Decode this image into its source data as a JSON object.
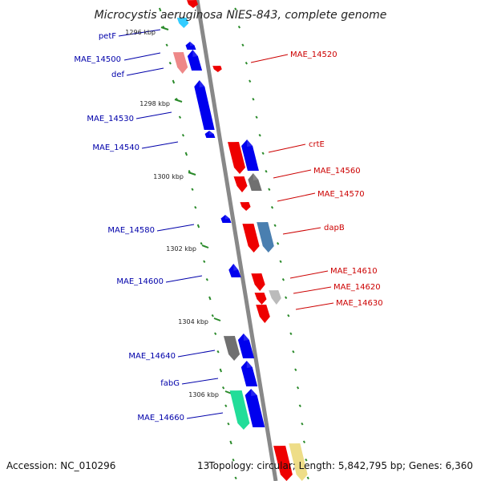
{
  "title": "Microcystis aeruginosa NIES-843, complete genome",
  "footer": {
    "accession": "Accession: NC_010296",
    "topology": "Topology: circular; Length: 5,842,795 bp; Genes: 6,360",
    "clipped": "13"
  },
  "colors": {
    "forward": "#0000ee",
    "reverse": "#ee0000",
    "forward_label": "#0000aa",
    "reverse_label": "#cc0000",
    "backbone": "#888888",
    "tick": "#2a8a2a",
    "grey_gene": "#707070",
    "steelblue_gene": "#4a7fb0",
    "green_gene": "#22dd99",
    "pink_gene": "#ee8888",
    "light_grey_gene": "#bbbbbb",
    "cyan_gene": "#33ccff",
    "yellow_gene": "#eedd88"
  },
  "kbp_ticks": [
    "1296 kbp",
    "1298 kbp",
    "1300 kbp",
    "1302 kbp",
    "1304 kbp",
    "1306 kbp"
  ],
  "genes": {
    "left": [
      "petF",
      "MAE_14500",
      "def",
      "MAE_14530",
      "MAE_14540",
      "MAE_14580",
      "MAE_14600",
      "MAE_14640",
      "fabG",
      "MAE_14660"
    ],
    "right": [
      "MAE_14520",
      "crtE",
      "MAE_14560",
      "MAE_14570",
      "dapB",
      "MAE_14610",
      "MAE_14620",
      "MAE_14630"
    ]
  }
}
